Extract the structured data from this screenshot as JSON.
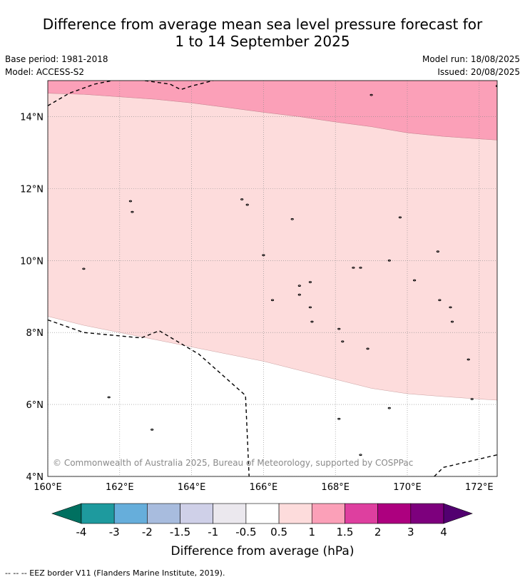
{
  "title": {
    "line1": "Difference from average mean sea level pressure forecast for",
    "line2": "1 to 14 September 2025"
  },
  "meta": {
    "base_period": "Base period: 1981-2018",
    "model": "Model: ACCESS-S2",
    "model_run": "Model run: 18/08/2025",
    "issued": "Issued: 20/08/2025"
  },
  "map": {
    "lon_range": [
      160,
      172.5
    ],
    "lat_range": [
      4,
      15
    ],
    "lon_ticks": [
      {
        "value": 160,
        "label": "160°E"
      },
      {
        "value": 162,
        "label": "162°E"
      },
      {
        "value": 164,
        "label": "164°E"
      },
      {
        "value": 166,
        "label": "166°E"
      },
      {
        "value": 168,
        "label": "168°E"
      },
      {
        "value": 170,
        "label": "170°E"
      },
      {
        "value": 172,
        "label": "172°E"
      }
    ],
    "lat_ticks": [
      {
        "value": 4,
        "label": "4°N"
      },
      {
        "value": 6,
        "label": "6°N"
      },
      {
        "value": 8,
        "label": "8°N"
      },
      {
        "value": 10,
        "label": "10°N"
      },
      {
        "value": 12,
        "label": "12°N"
      },
      {
        "value": 14,
        "label": "14°N"
      }
    ],
    "copyright": "© Commonwealth of Australia 2025, Bureau of Meteorology, supported by COSPPac",
    "colors": {
      "band_0_5_1": "#fddcdc",
      "band_1_1_5": "#fba0b8",
      "gridline": "#888888"
    },
    "contour_1hPa": [
      [
        160,
        14.65
      ],
      [
        161,
        14.62
      ],
      [
        162,
        14.55
      ],
      [
        163,
        14.48
      ],
      [
        164,
        14.38
      ],
      [
        165,
        14.25
      ],
      [
        166,
        14.12
      ],
      [
        167,
        14.0
      ],
      [
        168,
        13.85
      ],
      [
        169,
        13.72
      ],
      [
        170,
        13.55
      ],
      [
        171,
        13.45
      ],
      [
        172,
        13.38
      ],
      [
        172.5,
        13.35
      ]
    ],
    "contour_0_5hPa": [
      [
        160,
        8.45
      ],
      [
        161,
        8.2
      ],
      [
        162,
        8.0
      ],
      [
        163,
        7.8
      ],
      [
        164,
        7.6
      ],
      [
        165,
        7.4
      ],
      [
        166,
        7.2
      ],
      [
        167,
        6.95
      ],
      [
        168,
        6.7
      ],
      [
        169,
        6.45
      ],
      [
        170,
        6.3
      ],
      [
        171,
        6.22
      ],
      [
        172,
        6.15
      ],
      [
        172.5,
        6.12
      ]
    ],
    "eez_borders": [
      [
        [
          160,
          14.3
        ],
        [
          160.6,
          14.65
        ],
        [
          161.3,
          14.9
        ],
        [
          161.8,
          15.0
        ]
      ],
      [
        [
          162.7,
          15.0
        ],
        [
          163.4,
          14.9
        ],
        [
          163.7,
          14.75
        ],
        [
          164.0,
          14.85
        ],
        [
          164.6,
          15.0
        ]
      ],
      [
        [
          160,
          8.35
        ],
        [
          161,
          8.0
        ],
        [
          162.6,
          7.85
        ],
        [
          163.1,
          8.05
        ],
        [
          164.2,
          7.4
        ],
        [
          165.5,
          6.25
        ],
        [
          165.6,
          4.0
        ]
      ],
      [
        [
          170.75,
          4.0
        ],
        [
          171.0,
          4.25
        ],
        [
          172.5,
          4.6
        ]
      ]
    ],
    "islands": [
      [
        161.0,
        9.77
      ],
      [
        162.3,
        11.65
      ],
      [
        162.35,
        11.35
      ],
      [
        165.4,
        11.7
      ],
      [
        165.55,
        11.55
      ],
      [
        166.0,
        10.15
      ],
      [
        166.8,
        11.15
      ],
      [
        169.0,
        14.6
      ],
      [
        169.8,
        11.2
      ],
      [
        170.85,
        10.25
      ],
      [
        167.0,
        9.3
      ],
      [
        167.3,
        9.4
      ],
      [
        167.0,
        9.05
      ],
      [
        167.3,
        8.7
      ],
      [
        166.25,
        8.9
      ],
      [
        168.5,
        9.8
      ],
      [
        168.7,
        9.8
      ],
      [
        169.5,
        10.0
      ],
      [
        170.2,
        9.45
      ],
      [
        170.9,
        8.9
      ],
      [
        171.2,
        8.7
      ],
      [
        171.25,
        8.3
      ],
      [
        167.35,
        8.3
      ],
      [
        168.1,
        8.1
      ],
      [
        168.2,
        7.75
      ],
      [
        168.9,
        7.55
      ],
      [
        169.5,
        5.9
      ],
      [
        168.1,
        5.6
      ],
      [
        161.7,
        6.2
      ],
      [
        162.9,
        5.3
      ],
      [
        168.7,
        4.6
      ],
      [
        171.7,
        7.25
      ],
      [
        171.8,
        6.15
      ],
      [
        172.5,
        14.85
      ]
    ]
  },
  "colorbar": {
    "labels": [
      "-4",
      "-3",
      "-2",
      "-1.5",
      "-1",
      "-0.5",
      "0.5",
      "1",
      "1.5",
      "2",
      "3",
      "4"
    ],
    "colors": [
      "#007060",
      "#1e9a9e",
      "#66aedb",
      "#a8bcde",
      "#cfd0e8",
      "#ebe8ee",
      "#ffffff",
      "#fddcdc",
      "#fba0b8",
      "#de3f9f",
      "#ad007f",
      "#7d007d",
      "#520070"
    ],
    "title": "Difference from average (hPa)"
  },
  "footer": "--  --  -- EEZ border V11 (Flanders Marine Institute, 2019)."
}
